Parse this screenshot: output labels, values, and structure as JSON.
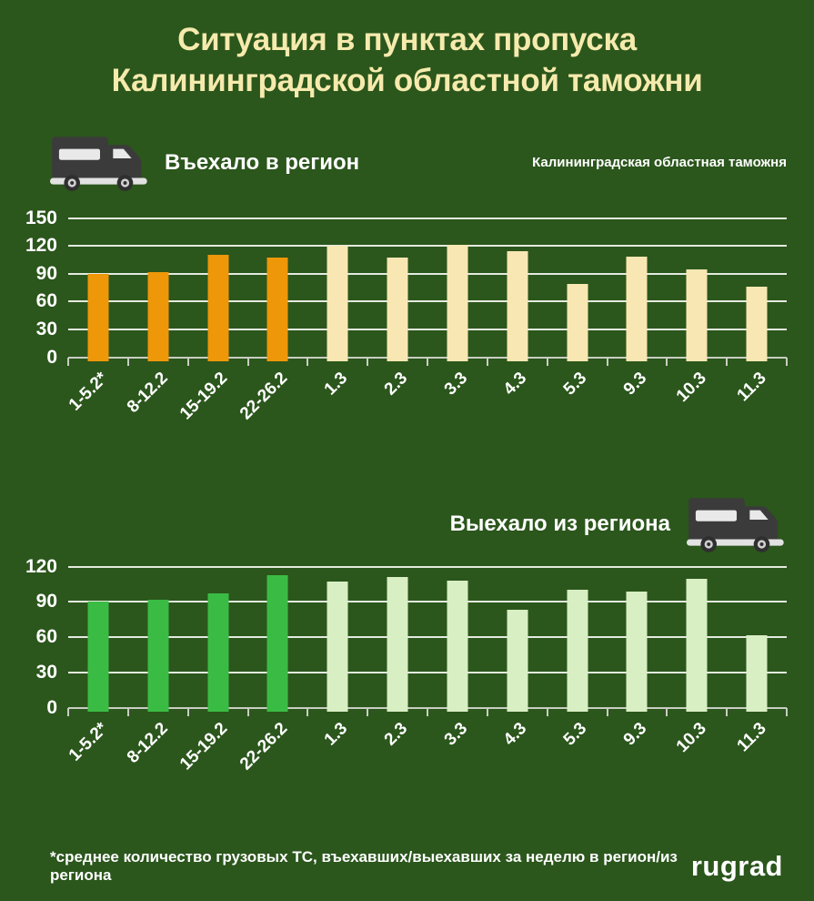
{
  "title": {
    "line1": "Ситуация в пунктах пропуска",
    "line2": "Калининградской областной таможни"
  },
  "colors": {
    "background": "#2B561C",
    "title_text": "#F6EAAD",
    "text_white": "#FFFFFF",
    "gridline": "#F4F6F0",
    "axis": "#C9CDC2",
    "orange_bar": "#EE9709",
    "cream_bar": "#F8E7B2",
    "green_bar": "#3ABC44",
    "light_green_bar": "#D8EEC3",
    "truck_body": "#3B3B3B",
    "truck_detail": "#E9E9E9"
  },
  "icons": {
    "truck": "truck-icon"
  },
  "chart_data": [
    {
      "type": "bar",
      "title": "Въехало в регион",
      "annotation": "Калининградская областная таможня",
      "categories": [
        "1-5.2*",
        "8-12.2",
        "15-19.2",
        "22-26.2",
        "1.3",
        "2.3",
        "3.3",
        "4.3",
        "5.3",
        "9.3",
        "10.3",
        "11.3"
      ],
      "values": [
        90,
        92,
        110,
        107,
        120,
        107,
        121,
        114,
        79,
        108,
        95,
        76
      ],
      "ylim": [
        0,
        150
      ],
      "yticks": [
        0,
        30,
        60,
        90,
        120,
        150
      ],
      "grid": true,
      "legend": "none",
      "highlight_count": 4,
      "bar_colors": {
        "highlight": "#EE9709",
        "rest": "#F8E7B2"
      }
    },
    {
      "type": "bar",
      "title": "Выехало из региона",
      "annotation": "",
      "categories": [
        "1-5.2*",
        "8-12.2",
        "15-19.2",
        "22-26.2",
        "1.3",
        "2.3",
        "3.3",
        "4.3",
        "5.3",
        "9.3",
        "10.3",
        "11.3"
      ],
      "values": [
        90,
        92,
        97,
        113,
        107,
        111,
        108,
        83,
        100,
        99,
        110,
        62
      ],
      "ylim": [
        0,
        120
      ],
      "yticks": [
        0,
        30,
        60,
        90,
        120
      ],
      "grid": true,
      "legend": "none",
      "highlight_count": 4,
      "bar_colors": {
        "highlight": "#3ABC44",
        "rest": "#D8EEC3"
      }
    }
  ],
  "footer": {
    "note": "*среднее количество грузовых ТС, въехавших/выехавших за неделю в регион/из региона",
    "logo": "rugrad"
  }
}
